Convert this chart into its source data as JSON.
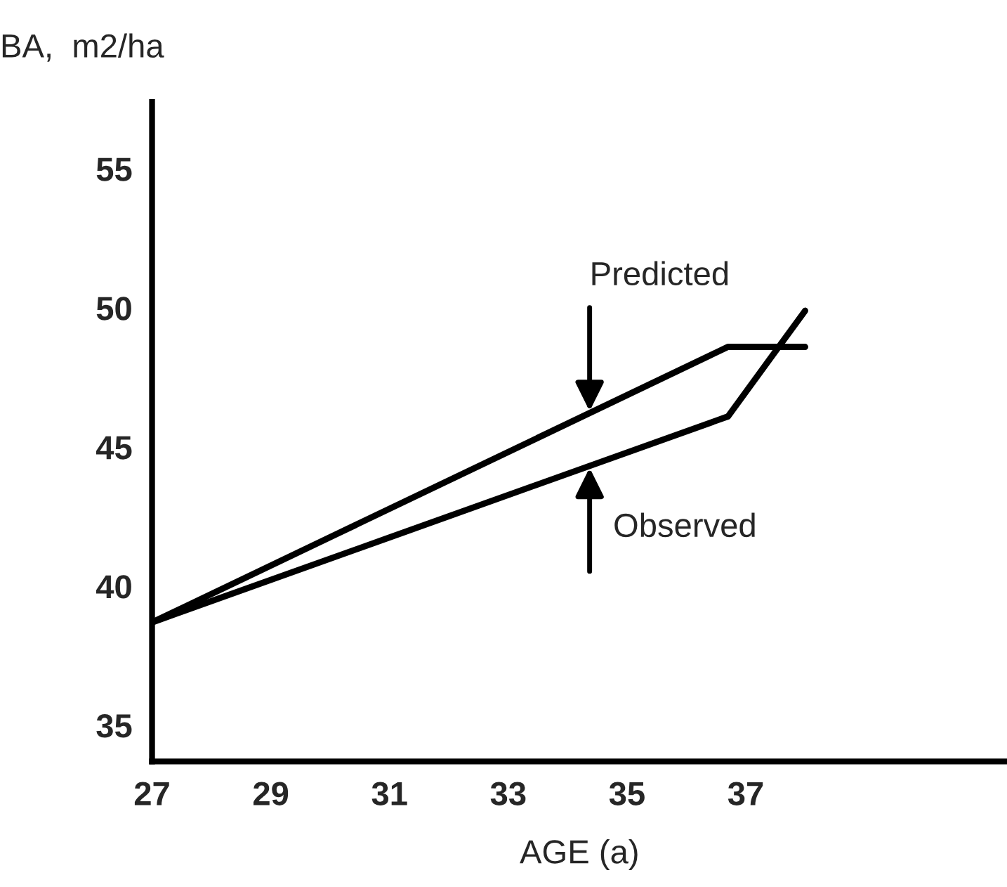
{
  "chart_data": {
    "type": "line",
    "ylabel": "BA,  m2/ha",
    "xlabel": "AGE (a)",
    "series": [
      {
        "name": "Predicted",
        "color": "#000000",
        "x": [
          27,
          36.7,
          38.0
        ],
        "values": [
          38.7,
          48.6,
          48.6
        ]
      },
      {
        "name": "Observed",
        "color": "#000000",
        "x": [
          27,
          36.7,
          38.0
        ],
        "values": [
          38.7,
          46.1,
          49.9
        ]
      }
    ],
    "xlim": [
      27,
      41.4
    ],
    "xticks": [
      27,
      29,
      31,
      33,
      35,
      37
    ],
    "ylim": [
      33.7,
      57.4
    ],
    "yticks": [
      35,
      40,
      45,
      50,
      55
    ],
    "grid": false,
    "marker": "none",
    "line_style": "solid"
  }
}
